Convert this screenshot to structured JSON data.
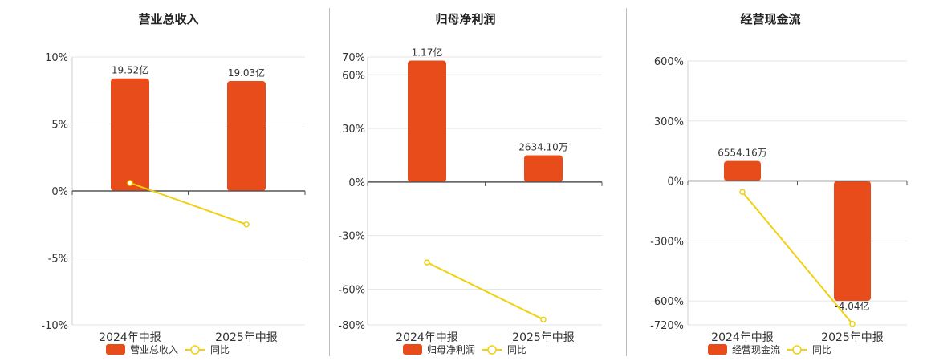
{
  "legend_labels": {
    "same_period": "同比"
  },
  "colors": {
    "bar": "#e84c1a",
    "line": "#f2cf10",
    "axis": "#555555",
    "grid": "#e6e6e6",
    "text": "#333333"
  },
  "chart_data": [
    {
      "type": "bar",
      "title": "营业总收入",
      "categories": [
        "2024年中报",
        "2025年中报"
      ],
      "series": [
        {
          "name": "营业总收入",
          "kind": "bar",
          "values": [
            8.4,
            8.2
          ],
          "data_labels": [
            "19.52亿",
            "19.03亿"
          ]
        },
        {
          "name": "同比",
          "kind": "line",
          "values": [
            0.6,
            -2.5
          ]
        }
      ],
      "yticks": [
        "10%",
        "5%",
        "0%",
        "-5%",
        "-10%"
      ],
      "ytick_values": [
        10,
        5,
        0,
        -5,
        -10
      ],
      "ylim": [
        -10,
        10
      ],
      "grid": true,
      "legend_position": "bottom"
    },
    {
      "type": "bar",
      "title": "归母净利润",
      "categories": [
        "2024年中报",
        "2025年中报"
      ],
      "series": [
        {
          "name": "归母净利润",
          "kind": "bar",
          "values": [
            68,
            15
          ],
          "data_labels": [
            "1.17亿",
            "2634.10万"
          ]
        },
        {
          "name": "同比",
          "kind": "line",
          "values": [
            -45,
            -77
          ]
        }
      ],
      "yticks": [
        "70%",
        "60%",
        "30%",
        "0%",
        "-30%",
        "-60%",
        "-80%"
      ],
      "ytick_values": [
        70,
        60,
        30,
        0,
        -30,
        -60,
        -80
      ],
      "ylim": [
        -80,
        70
      ],
      "grid": true,
      "legend_position": "bottom"
    },
    {
      "type": "bar",
      "title": "经营现金流",
      "categories": [
        "2024年中报",
        "2025年中报"
      ],
      "series": [
        {
          "name": "经营现金流",
          "kind": "bar",
          "values": [
            100,
            -600
          ],
          "data_labels": [
            "6554.16万",
            "-4.04亿"
          ]
        },
        {
          "name": "同比",
          "kind": "line",
          "values": [
            -55,
            -715
          ]
        }
      ],
      "yticks": [
        "600%",
        "300%",
        "0%",
        "-300%",
        "-600%",
        "-720%"
      ],
      "ytick_values": [
        600,
        300,
        0,
        -300,
        -600,
        -720
      ],
      "ylim": [
        -720,
        600
      ],
      "grid": true,
      "legend_position": "bottom"
    }
  ]
}
